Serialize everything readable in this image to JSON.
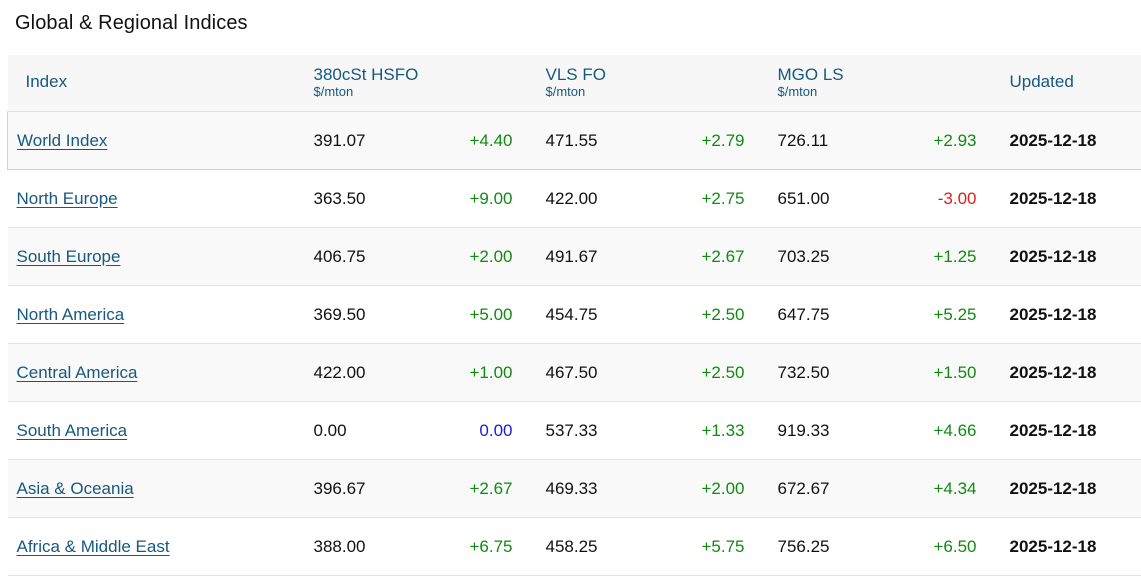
{
  "page": {
    "title": "Global & Regional Indices"
  },
  "table": {
    "headers": {
      "index": "Index",
      "hsfo": "380cSt HSFO",
      "hsfo_unit": "$/mton",
      "vlsfo": "VLS FO",
      "vlsfo_unit": "$/mton",
      "mgo": "MGO LS",
      "mgo_unit": "$/mton",
      "updated": "Updated"
    },
    "rows": [
      {
        "name": "World Index",
        "hsfo": "391.07",
        "hsfo_chg": "+4.40",
        "vlsfo": "471.55",
        "vlsfo_chg": "+2.79",
        "mgo": "726.11",
        "mgo_chg": "+2.93",
        "updated": "2025-12-18"
      },
      {
        "name": "North Europe",
        "hsfo": "363.50",
        "hsfo_chg": "+9.00",
        "vlsfo": "422.00",
        "vlsfo_chg": "+2.75",
        "mgo": "651.00",
        "mgo_chg": "-3.00",
        "updated": "2025-12-18"
      },
      {
        "name": "South Europe",
        "hsfo": "406.75",
        "hsfo_chg": "+2.00",
        "vlsfo": "491.67",
        "vlsfo_chg": "+2.67",
        "mgo": "703.25",
        "mgo_chg": "+1.25",
        "updated": "2025-12-18"
      },
      {
        "name": "North America",
        "hsfo": "369.50",
        "hsfo_chg": "+5.00",
        "vlsfo": "454.75",
        "vlsfo_chg": "+2.50",
        "mgo": "647.75",
        "mgo_chg": "+5.25",
        "updated": "2025-12-18"
      },
      {
        "name": "Central America",
        "hsfo": "422.00",
        "hsfo_chg": "+1.00",
        "vlsfo": "467.50",
        "vlsfo_chg": "+2.50",
        "mgo": "732.50",
        "mgo_chg": "+1.50",
        "updated": "2025-12-18"
      },
      {
        "name": "South America",
        "hsfo": "0.00",
        "hsfo_chg": "0.00",
        "vlsfo": "537.33",
        "vlsfo_chg": "+1.33",
        "mgo": "919.33",
        "mgo_chg": "+4.66",
        "updated": "2025-12-18"
      },
      {
        "name": "Asia & Oceania",
        "hsfo": "396.67",
        "hsfo_chg": "+2.67",
        "vlsfo": "469.33",
        "vlsfo_chg": "+2.00",
        "mgo": "672.67",
        "mgo_chg": "+4.34",
        "updated": "2025-12-18"
      },
      {
        "name": "Africa & Middle East",
        "hsfo": "388.00",
        "hsfo_chg": "+6.75",
        "vlsfo": "458.25",
        "vlsfo_chg": "+5.75",
        "mgo": "756.25",
        "mgo_chg": "+6.50",
        "updated": "2025-12-18"
      }
    ]
  },
  "colors": {
    "link": "#17587f",
    "positive": "#128a12",
    "negative": "#d9201c",
    "zero": "#1a1adb"
  }
}
